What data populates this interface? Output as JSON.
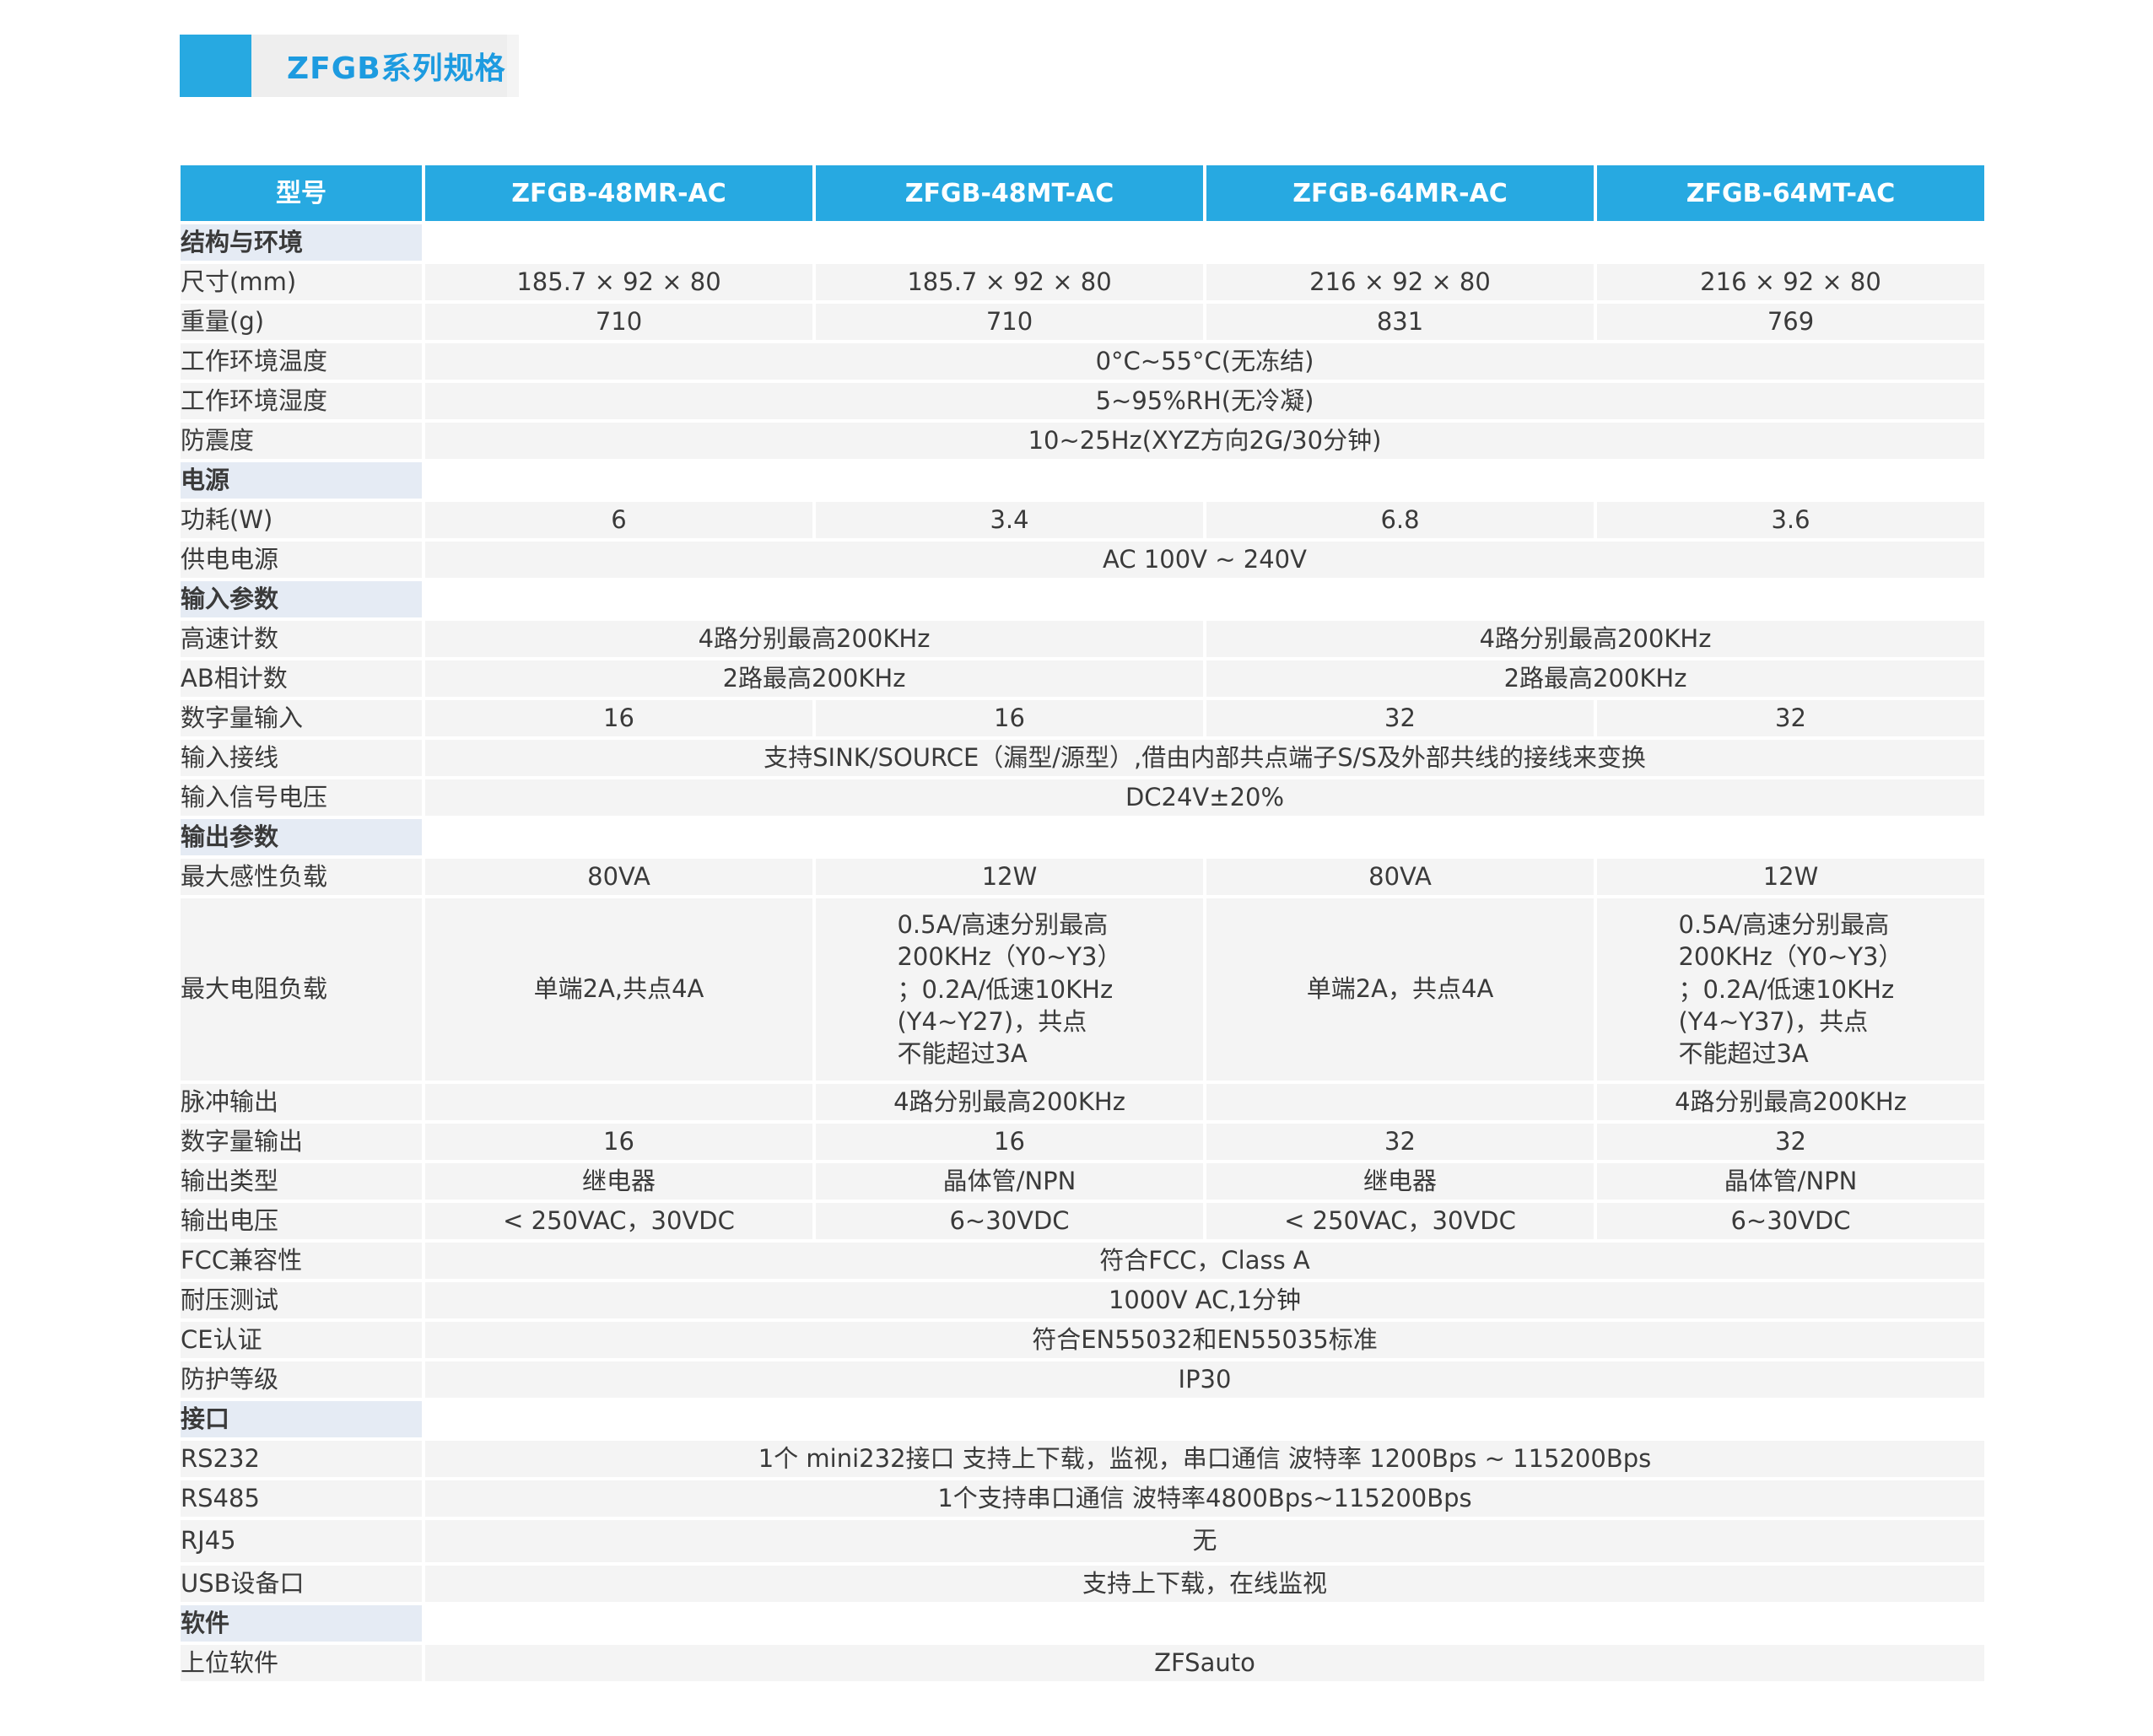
{
  "title": "ZFGB系列规格",
  "colors": {
    "accent": "#27a9e1",
    "title_text": "#1d9be0",
    "section_bg": "#e5ebf4",
    "cell_bg": "#f4f4f4"
  },
  "header": [
    "型号",
    "ZFGB-48MR-AC",
    "ZFGB-48MT-AC",
    "ZFGB-64MR-AC",
    "ZFGB-64MT-AC"
  ],
  "rows": [
    {
      "section": "结构与环境"
    },
    {
      "label": "尺寸(mm)",
      "cells": [
        {
          "text": "185.7 × 92 × 80"
        },
        {
          "text": "185.7 × 92 × 80"
        },
        {
          "text": "216 × 92 × 80"
        },
        {
          "text": "216 × 92 × 80"
        }
      ]
    },
    {
      "label": "重量(g)",
      "cells": [
        {
          "text": "710"
        },
        {
          "text": "710"
        },
        {
          "text": "831"
        },
        {
          "text": "769"
        }
      ]
    },
    {
      "label": "工作环境温度",
      "cells": [
        {
          "text": "0°C~55°C(无冻结)",
          "span": 4
        }
      ]
    },
    {
      "label": "工作环境湿度",
      "cells": [
        {
          "text": "5~95%RH(无冷凝)",
          "span": 4
        }
      ]
    },
    {
      "label": "防震度",
      "cells": [
        {
          "text": "10~25Hz(XYZ方向2G/30分钟)",
          "span": 4
        }
      ]
    },
    {
      "section": "电源"
    },
    {
      "label": "功耗(W)",
      "cells": [
        {
          "text": "6"
        },
        {
          "text": "3.4"
        },
        {
          "text": "6.8"
        },
        {
          "text": "3.6"
        }
      ]
    },
    {
      "label": "供电电源",
      "cells": [
        {
          "text": "AC 100V ~ 240V",
          "span": 4
        }
      ]
    },
    {
      "section": "输入参数"
    },
    {
      "label": "高速计数",
      "cells": [
        {
          "text": "4路分别最高200KHz",
          "span": 2
        },
        {
          "text": "4路分别最高200KHz",
          "span": 2
        }
      ]
    },
    {
      "label": "AB相计数",
      "cells": [
        {
          "text": "2路最高200KHz",
          "span": 2
        },
        {
          "text": "2路最高200KHz",
          "span": 2
        }
      ]
    },
    {
      "label": "数字量输入",
      "cells": [
        {
          "text": "16"
        },
        {
          "text": "16"
        },
        {
          "text": "32"
        },
        {
          "text": "32"
        }
      ]
    },
    {
      "label": "输入接线",
      "cells": [
        {
          "text": "支持SINK/SOURCE（漏型/源型）,借由内部共点端子S/S及外部共线的接线来变换",
          "span": 4
        }
      ]
    },
    {
      "label": "输入信号电压",
      "cells": [
        {
          "text": "DC24V±20%",
          "span": 4
        }
      ]
    },
    {
      "section": "输出参数"
    },
    {
      "label": "最大感性负载",
      "cells": [
        {
          "text": "80VA"
        },
        {
          "text": "12W"
        },
        {
          "text": "80VA"
        },
        {
          "text": "12W"
        }
      ]
    },
    {
      "label": "最大电阻负载",
      "tall": true,
      "cells": [
        {
          "text": "单端2A,共点4A"
        },
        {
          "text": "0.5A/高速分别最高\n200KHz（Y0~Y3）\n；0.2A/低速10KHz\n(Y4~Y27)，共点\n不能超过3A",
          "multi": true
        },
        {
          "text": "单端2A，共点4A"
        },
        {
          "text": "0.5A/高速分别最高\n200KHz（Y0~Y3）\n；0.2A/低速10KHz\n(Y4~Y37)，共点\n不能超过3A",
          "multi": true
        }
      ]
    },
    {
      "label": "脉冲输出",
      "cells": [
        {
          "text": ""
        },
        {
          "text": "4路分别最高200KHz"
        },
        {
          "text": ""
        },
        {
          "text": "4路分别最高200KHz"
        }
      ]
    },
    {
      "label": "数字量输出",
      "cells": [
        {
          "text": "16"
        },
        {
          "text": "16"
        },
        {
          "text": "32"
        },
        {
          "text": "32"
        }
      ]
    },
    {
      "label": "输出类型",
      "cells": [
        {
          "text": "继电器"
        },
        {
          "text": "晶体管/NPN"
        },
        {
          "text": "继电器"
        },
        {
          "text": "晶体管/NPN"
        }
      ]
    },
    {
      "label": "输出电压",
      "cells": [
        {
          "text": "< 250VAC，30VDC"
        },
        {
          "text": "6~30VDC"
        },
        {
          "text": "< 250VAC，30VDC"
        },
        {
          "text": "6~30VDC"
        }
      ]
    },
    {
      "label": "FCC兼容性",
      "cells": [
        {
          "text": "符合FCC，Class A",
          "span": 4
        }
      ]
    },
    {
      "label": "耐压测试",
      "cells": [
        {
          "text": "1000V AC,1分钟",
          "span": 4
        }
      ]
    },
    {
      "label": "CE认证",
      "cells": [
        {
          "text": "符合EN55032和EN55035标准",
          "span": 4
        }
      ]
    },
    {
      "label": "防护等级",
      "cells": [
        {
          "text": "IP30",
          "span": 4
        }
      ]
    },
    {
      "section": "接口"
    },
    {
      "label": "RS232",
      "cells": [
        {
          "text": "1个 mini232接口 支持上下载，监视，串口通信 波特率 1200Bps ~ 115200Bps",
          "span": 4
        }
      ]
    },
    {
      "label": "RS485",
      "cells": [
        {
          "text": "1个支持串口通信 波特率4800Bps~115200Bps",
          "span": 4
        }
      ]
    },
    {
      "label": "RJ45",
      "rj": true,
      "cells": [
        {
          "text": "无",
          "span": 4
        }
      ]
    },
    {
      "label": "USB设备口",
      "cells": [
        {
          "text": "支持上下载，在线监视",
          "span": 4
        }
      ]
    },
    {
      "section": " 软件"
    },
    {
      "label": "上位软件",
      "cells": [
        {
          "text": "ZFSauto",
          "span": 4
        }
      ]
    }
  ]
}
